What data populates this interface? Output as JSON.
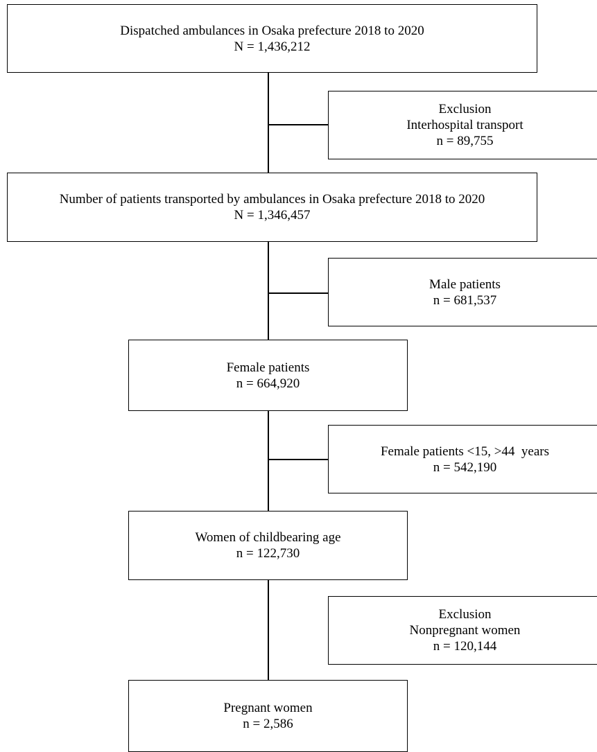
{
  "flowchart": {
    "main_boxes": [
      {
        "label": "Dispatched ambulances in Osaka prefecture 2018 to 2020",
        "count": "N = 1,436,212"
      },
      {
        "label": "Number of patients transported by ambulances in Osaka prefecture 2018 to 2020",
        "count": "N = 1,346,457"
      },
      {
        "label": "Female patients",
        "count": "n = 664,920"
      },
      {
        "label": "Women of childbearing age",
        "count": "n = 122,730"
      },
      {
        "label": "Pregnant women",
        "count": "n = 2,586"
      }
    ],
    "side_boxes": [
      {
        "heading": "Exclusion",
        "label": "Interhospital transport",
        "count": "n = 89,755"
      },
      {
        "label": "Male patients",
        "count": "n = 681,537"
      },
      {
        "label": "Female patients <15, >44  years",
        "count": "n = 542,190"
      },
      {
        "heading": "Exclusion",
        "label": "Nonpregnant women",
        "count": "n = 120,144"
      }
    ]
  }
}
